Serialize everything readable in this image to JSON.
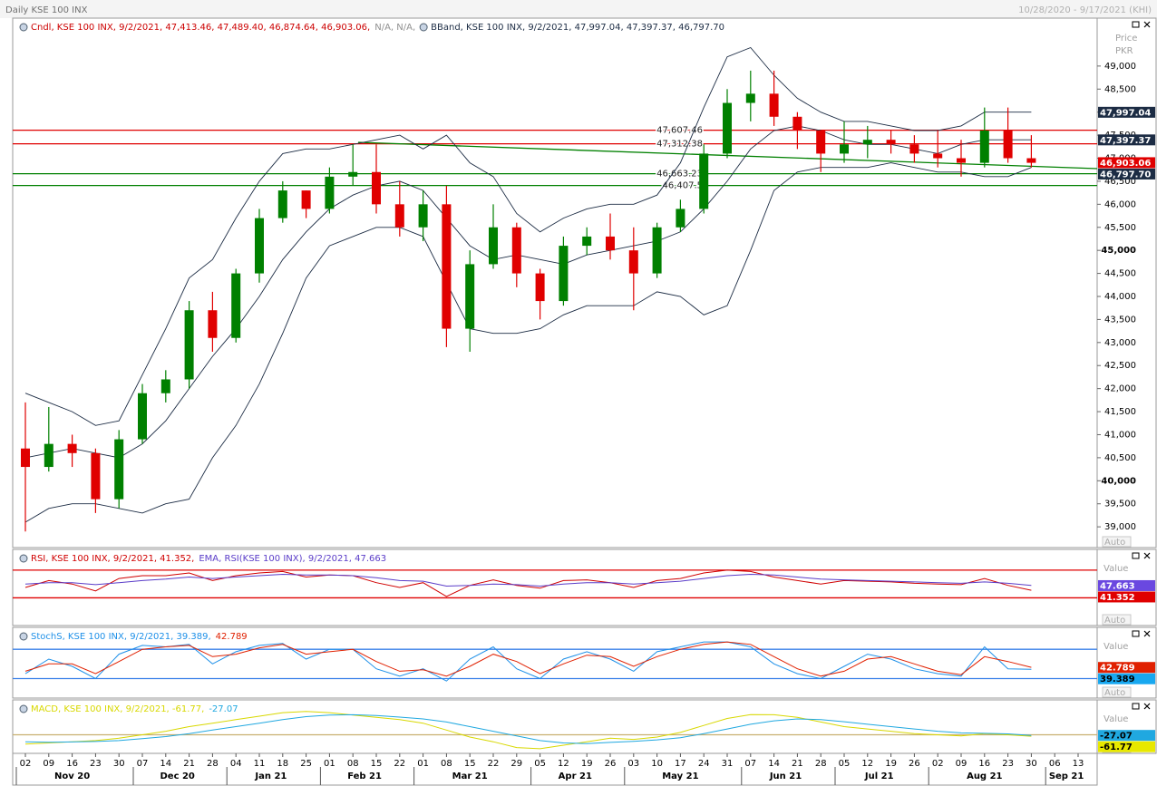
{
  "chart_data": [
    {
      "type": "candlestick",
      "title": "Daily KSE 100 INX",
      "subtitle": "10/28/2020 - 9/17/2021 (KHI)",
      "name": "Cndl, KSE 100 INX, 9/2/2021, 47,413.46, 47,489.40, 46,874.64, 46,903.06,",
      "name_color": "#cc0000",
      "name_extra": "N/A, N/A,",
      "ylabel": "Price",
      "yunit": "PKR",
      "categories": [
        "02",
        "09",
        "16",
        "23",
        "30",
        "07",
        "14",
        "21",
        "28",
        "04",
        "11",
        "18",
        "25",
        "01",
        "08",
        "15",
        "22",
        "01",
        "08",
        "15",
        "22",
        "29",
        "05",
        "12",
        "19",
        "26",
        "03",
        "10",
        "17",
        "24",
        "31",
        "07",
        "14",
        "21",
        "28",
        "05",
        "12",
        "19",
        "26",
        "02",
        "09",
        "16",
        "23",
        "30",
        "06",
        "13"
      ],
      "months": [
        "Nov 20",
        "Dec 20",
        "Jan 21",
        "Feb 21",
        "Mar 21",
        "Apr 21",
        "May 21",
        "Jun 21",
        "Jul 21",
        "Aug 21",
        "Sep 21"
      ],
      "open": [
        40700,
        40300,
        40800,
        40600,
        39600,
        40900,
        41900,
        42200,
        43700,
        43100,
        44500,
        45700,
        46300,
        45900,
        46600,
        46700,
        46000,
        45500,
        46000,
        43300,
        44700,
        45500,
        44500,
        43900,
        45100,
        45300,
        45000,
        44500,
        45500,
        45900,
        47100,
        48200,
        48400,
        47900,
        47600,
        47100,
        47300,
        47400,
        47300,
        47100,
        47000,
        46900,
        47600,
        47000,
        null,
        null
      ],
      "high": [
        41700,
        41600,
        41000,
        40700,
        41100,
        42100,
        42400,
        43900,
        44100,
        44600,
        45900,
        46500,
        46300,
        46800,
        47300,
        47300,
        46500,
        46300,
        46400,
        45000,
        46000,
        45600,
        44600,
        45300,
        45500,
        45800,
        45500,
        45600,
        46100,
        47300,
        48500,
        48900,
        48900,
        48000,
        47600,
        47800,
        47700,
        47600,
        47500,
        47600,
        47400,
        48100,
        48100,
        47500,
        null,
        null
      ],
      "low": [
        38900,
        40200,
        40300,
        39300,
        39400,
        40800,
        41700,
        42000,
        42800,
        43000,
        44300,
        45600,
        45700,
        45800,
        46400,
        45800,
        45300,
        45200,
        42900,
        42800,
        44600,
        44200,
        43500,
        43800,
        44900,
        44800,
        43700,
        44400,
        45400,
        45800,
        47000,
        47800,
        47700,
        47200,
        46700,
        46900,
        47000,
        47100,
        46900,
        46800,
        46600,
        46800,
        46900,
        46800,
        null,
        null
      ],
      "close": [
        40300,
        40800,
        40600,
        39600,
        40900,
        41900,
        42200,
        43700,
        43100,
        44500,
        45700,
        46300,
        45900,
        46600,
        46700,
        46000,
        45500,
        46000,
        43300,
        44700,
        45500,
        44500,
        43900,
        45100,
        45300,
        45000,
        44500,
        45500,
        45900,
        47100,
        48200,
        48400,
        47900,
        47600,
        47100,
        47300,
        47400,
        47300,
        47100,
        47000,
        46900,
        47600,
        47000,
        46900,
        null,
        null
      ],
      "up_color": "#008000",
      "down_color": "#e00000",
      "bands": {
        "name": "BBand, KSE 100 INX, 9/2/2021, 47,997.04, 47,397.37, 46,797.70",
        "color": "#1c2c44",
        "upper": [
          41900,
          41700,
          41500,
          41200,
          41300,
          42300,
          43300,
          44400,
          44800,
          45700,
          46500,
          47100,
          47200,
          47200,
          47300,
          47400,
          47500,
          47200,
          47500,
          46900,
          46600,
          45800,
          45400,
          45700,
          45900,
          46000,
          46000,
          46200,
          46900,
          48100,
          49200,
          49400,
          48800,
          48300,
          48000,
          47800,
          47800,
          47700,
          47600,
          47600,
          47700,
          48000,
          48000,
          48000,
          null,
          null
        ],
        "middle": [
          40500,
          40600,
          40700,
          40600,
          40500,
          40800,
          41300,
          42000,
          42700,
          43300,
          44000,
          44800,
          45400,
          45900,
          46200,
          46400,
          46500,
          46300,
          45700,
          45100,
          44800,
          44900,
          44800,
          44700,
          44900,
          45000,
          45100,
          45200,
          45400,
          45900,
          46500,
          47200,
          47600,
          47700,
          47600,
          47400,
          47300,
          47300,
          47200,
          47100,
          47300,
          47400,
          47400,
          47400,
          null,
          null
        ],
        "lower": [
          39100,
          39400,
          39500,
          39500,
          39400,
          39300,
          39500,
          39600,
          40500,
          41200,
          42100,
          43200,
          44400,
          45100,
          45300,
          45500,
          45500,
          45300,
          44300,
          43300,
          43200,
          43200,
          43300,
          43600,
          43800,
          43800,
          43800,
          44100,
          44000,
          43600,
          43800,
          45000,
          46300,
          46700,
          46800,
          46800,
          46800,
          46900,
          46800,
          46700,
          46700,
          46600,
          46600,
          46800,
          null,
          null
        ]
      },
      "levels": [
        {
          "value": 47607.46,
          "label": "47,607.46",
          "color": "#e00000"
        },
        {
          "value": 47312.38,
          "label": "47,312.38",
          "color": "#e00000"
        },
        {
          "value": 46663.23,
          "label": "46,663.23",
          "color": "#008000"
        },
        {
          "value": 46407.5,
          "label": "46,407.5",
          "color": "#008000"
        }
      ],
      "markers": [
        {
          "value": 47997.04,
          "label": "47,997.04",
          "color": "#1c2c44",
          "text_color": "#ffffff"
        },
        {
          "value": 47397.37,
          "label": "47,397.37",
          "color": "#1c2c44",
          "text_color": "#ffffff"
        },
        {
          "value": 46903.06,
          "label": "46,903.06",
          "color": "#e00000",
          "text_color": "#ffffff"
        },
        {
          "value": 46797.7,
          "label": "46,797.70",
          "color": "#1c2c44",
          "text_color": "#ffffff"
        }
      ],
      "ylim": [
        38550,
        50040
      ],
      "yticks": [
        {
          "value": 39000,
          "label": "39,000"
        },
        {
          "value": 39500,
          "label": "39,500"
        },
        {
          "value": 40000,
          "label": "40,000"
        },
        {
          "value": 40500,
          "label": "40,500"
        },
        {
          "value": 41000,
          "label": "41,000"
        },
        {
          "value": 41500,
          "label": "41,500"
        },
        {
          "value": 42000,
          "label": "42,000"
        },
        {
          "value": 42500,
          "label": "42,500"
        },
        {
          "value": 43000,
          "label": "43,000"
        },
        {
          "value": 43500,
          "label": "43,500"
        },
        {
          "value": 44000,
          "label": "44,000"
        },
        {
          "value": 44500,
          "label": "44,500"
        },
        {
          "value": 45000,
          "label": "45,000"
        },
        {
          "value": 45500,
          "label": "45,500"
        },
        {
          "value": 46000,
          "label": "46,000"
        },
        {
          "value": 46500,
          "label": "46,500"
        },
        {
          "value": 47000,
          "label": "47,000"
        },
        {
          "value": 47500,
          "label": "47,500"
        },
        {
          "value": 48000,
          "label": "48,000"
        },
        {
          "value": 48500,
          "label": "48,500"
        },
        {
          "value": 49000,
          "label": "49,000"
        }
      ],
      "auto_label": "Auto"
    },
    {
      "type": "line",
      "series": [
        {
          "name": "RSI, KSE 100 INX, 9/2/2021, 41.352,",
          "color": "#d00000",
          "values": [
            45,
            55,
            50,
            40,
            58,
            62,
            62,
            66,
            55,
            62,
            66,
            68,
            60,
            63,
            62,
            52,
            45,
            52,
            32,
            48,
            56,
            48,
            44,
            55,
            56,
            52,
            45,
            55,
            58,
            66,
            70,
            68,
            60,
            55,
            50,
            55,
            54,
            53,
            51,
            50,
            49,
            58,
            48,
            41,
            null,
            null
          ]
        },
        {
          "name": "EMA, RSI(KSE 100 INX), 9/2/2021, 47.663",
          "color": "#5a3cc8",
          "values": [
            50,
            52,
            52,
            49,
            52,
            55,
            57,
            60,
            58,
            60,
            62,
            64,
            63,
            63,
            62,
            59,
            55,
            54,
            47,
            48,
            50,
            49,
            47,
            50,
            52,
            52,
            50,
            52,
            54,
            58,
            62,
            64,
            63,
            60,
            57,
            56,
            55,
            54,
            53,
            52,
            51,
            53,
            51,
            48,
            null,
            null
          ]
        }
      ],
      "levels": [
        {
          "value": 70,
          "color": "#e00000"
        },
        {
          "value": 30,
          "color": "#e00000"
        }
      ],
      "markers": [
        {
          "value": 47.663,
          "label": "47.663",
          "color": "#6a48e0",
          "text_color": "#ffffff"
        },
        {
          "value": 41.352,
          "label": "41.352",
          "color": "#e00000",
          "text_color": "#ffffff"
        }
      ],
      "ylim": [
        -10,
        100
      ],
      "scale_title": "Value",
      "auto_label": "Auto"
    },
    {
      "type": "line",
      "series": [
        {
          "name": "StochS, KSE 100 INX, 9/2/2021, 39.389,",
          "color": "#1e90e8",
          "values": [
            30,
            60,
            45,
            20,
            70,
            88,
            85,
            90,
            50,
            75,
            88,
            92,
            60,
            80,
            80,
            40,
            25,
            40,
            15,
            60,
            85,
            40,
            20,
            60,
            75,
            60,
            35,
            75,
            85,
            95,
            95,
            85,
            50,
            30,
            20,
            45,
            70,
            60,
            40,
            30,
            25,
            85,
            40,
            39,
            null,
            null
          ]
        },
        {
          "name": "42.789",
          "color": "#e02000",
          "values": [
            35,
            50,
            50,
            30,
            55,
            80,
            85,
            88,
            65,
            70,
            83,
            90,
            70,
            75,
            80,
            55,
            35,
            38,
            25,
            45,
            70,
            55,
            30,
            50,
            68,
            65,
            45,
            65,
            80,
            90,
            95,
            90,
            65,
            40,
            25,
            35,
            60,
            65,
            50,
            35,
            28,
            65,
            55,
            43,
            null,
            null
          ]
        }
      ],
      "levels": [
        {
          "value": 80,
          "color": "#3a80e8"
        },
        {
          "value": 20,
          "color": "#3a80e8"
        }
      ],
      "markers": [
        {
          "value": 42.789,
          "label": "42.789",
          "color": "#e02000",
          "text_color": "#ffffff"
        },
        {
          "value": 39.389,
          "label": "39.389",
          "color": "#18a8f0",
          "text_color": "#000000"
        }
      ],
      "ylim": [
        -20,
        125
      ],
      "scale_title": "Value",
      "auto_label": "Auto"
    },
    {
      "type": "line",
      "series": [
        {
          "name": "MACD, KSE 100 INX, 9/2/2021, -61.77,",
          "color": "#d8d800",
          "values": [
            -400,
            -350,
            -300,
            -250,
            -150,
            0,
            150,
            350,
            500,
            650,
            800,
            950,
            1000,
            950,
            850,
            750,
            650,
            500,
            200,
            -100,
            -300,
            -550,
            -600,
            -450,
            -300,
            -150,
            -200,
            -100,
            100,
            400,
            700,
            870,
            860,
            750,
            550,
            350,
            250,
            150,
            50,
            0,
            -50,
            50,
            0,
            -62,
            null,
            null
          ]
        },
        {
          "name": "-27.07",
          "color": "#20a8e0",
          "values": [
            -300,
            -320,
            -310,
            -290,
            -250,
            -170,
            -80,
            50,
            200,
            350,
            500,
            650,
            780,
            850,
            860,
            830,
            760,
            680,
            550,
            350,
            150,
            -50,
            -250,
            -350,
            -380,
            -330,
            -280,
            -220,
            -130,
            50,
            250,
            450,
            600,
            680,
            650,
            560,
            450,
            350,
            250,
            150,
            80,
            60,
            40,
            -27,
            null,
            null
          ]
        }
      ],
      "levels": [
        {
          "value": 0,
          "color": "#c8b070"
        }
      ],
      "markers": [
        {
          "value": -27.07,
          "label": "-27.07",
          "color": "#20a8e0",
          "text_color": "#000000"
        },
        {
          "value": -61.77,
          "label": "-61.77",
          "color": "#e8e800",
          "text_color": "#000000"
        }
      ],
      "ylim": [
        -800,
        1500
      ],
      "scale_title": "Value",
      "auto_label": "Auto"
    }
  ]
}
